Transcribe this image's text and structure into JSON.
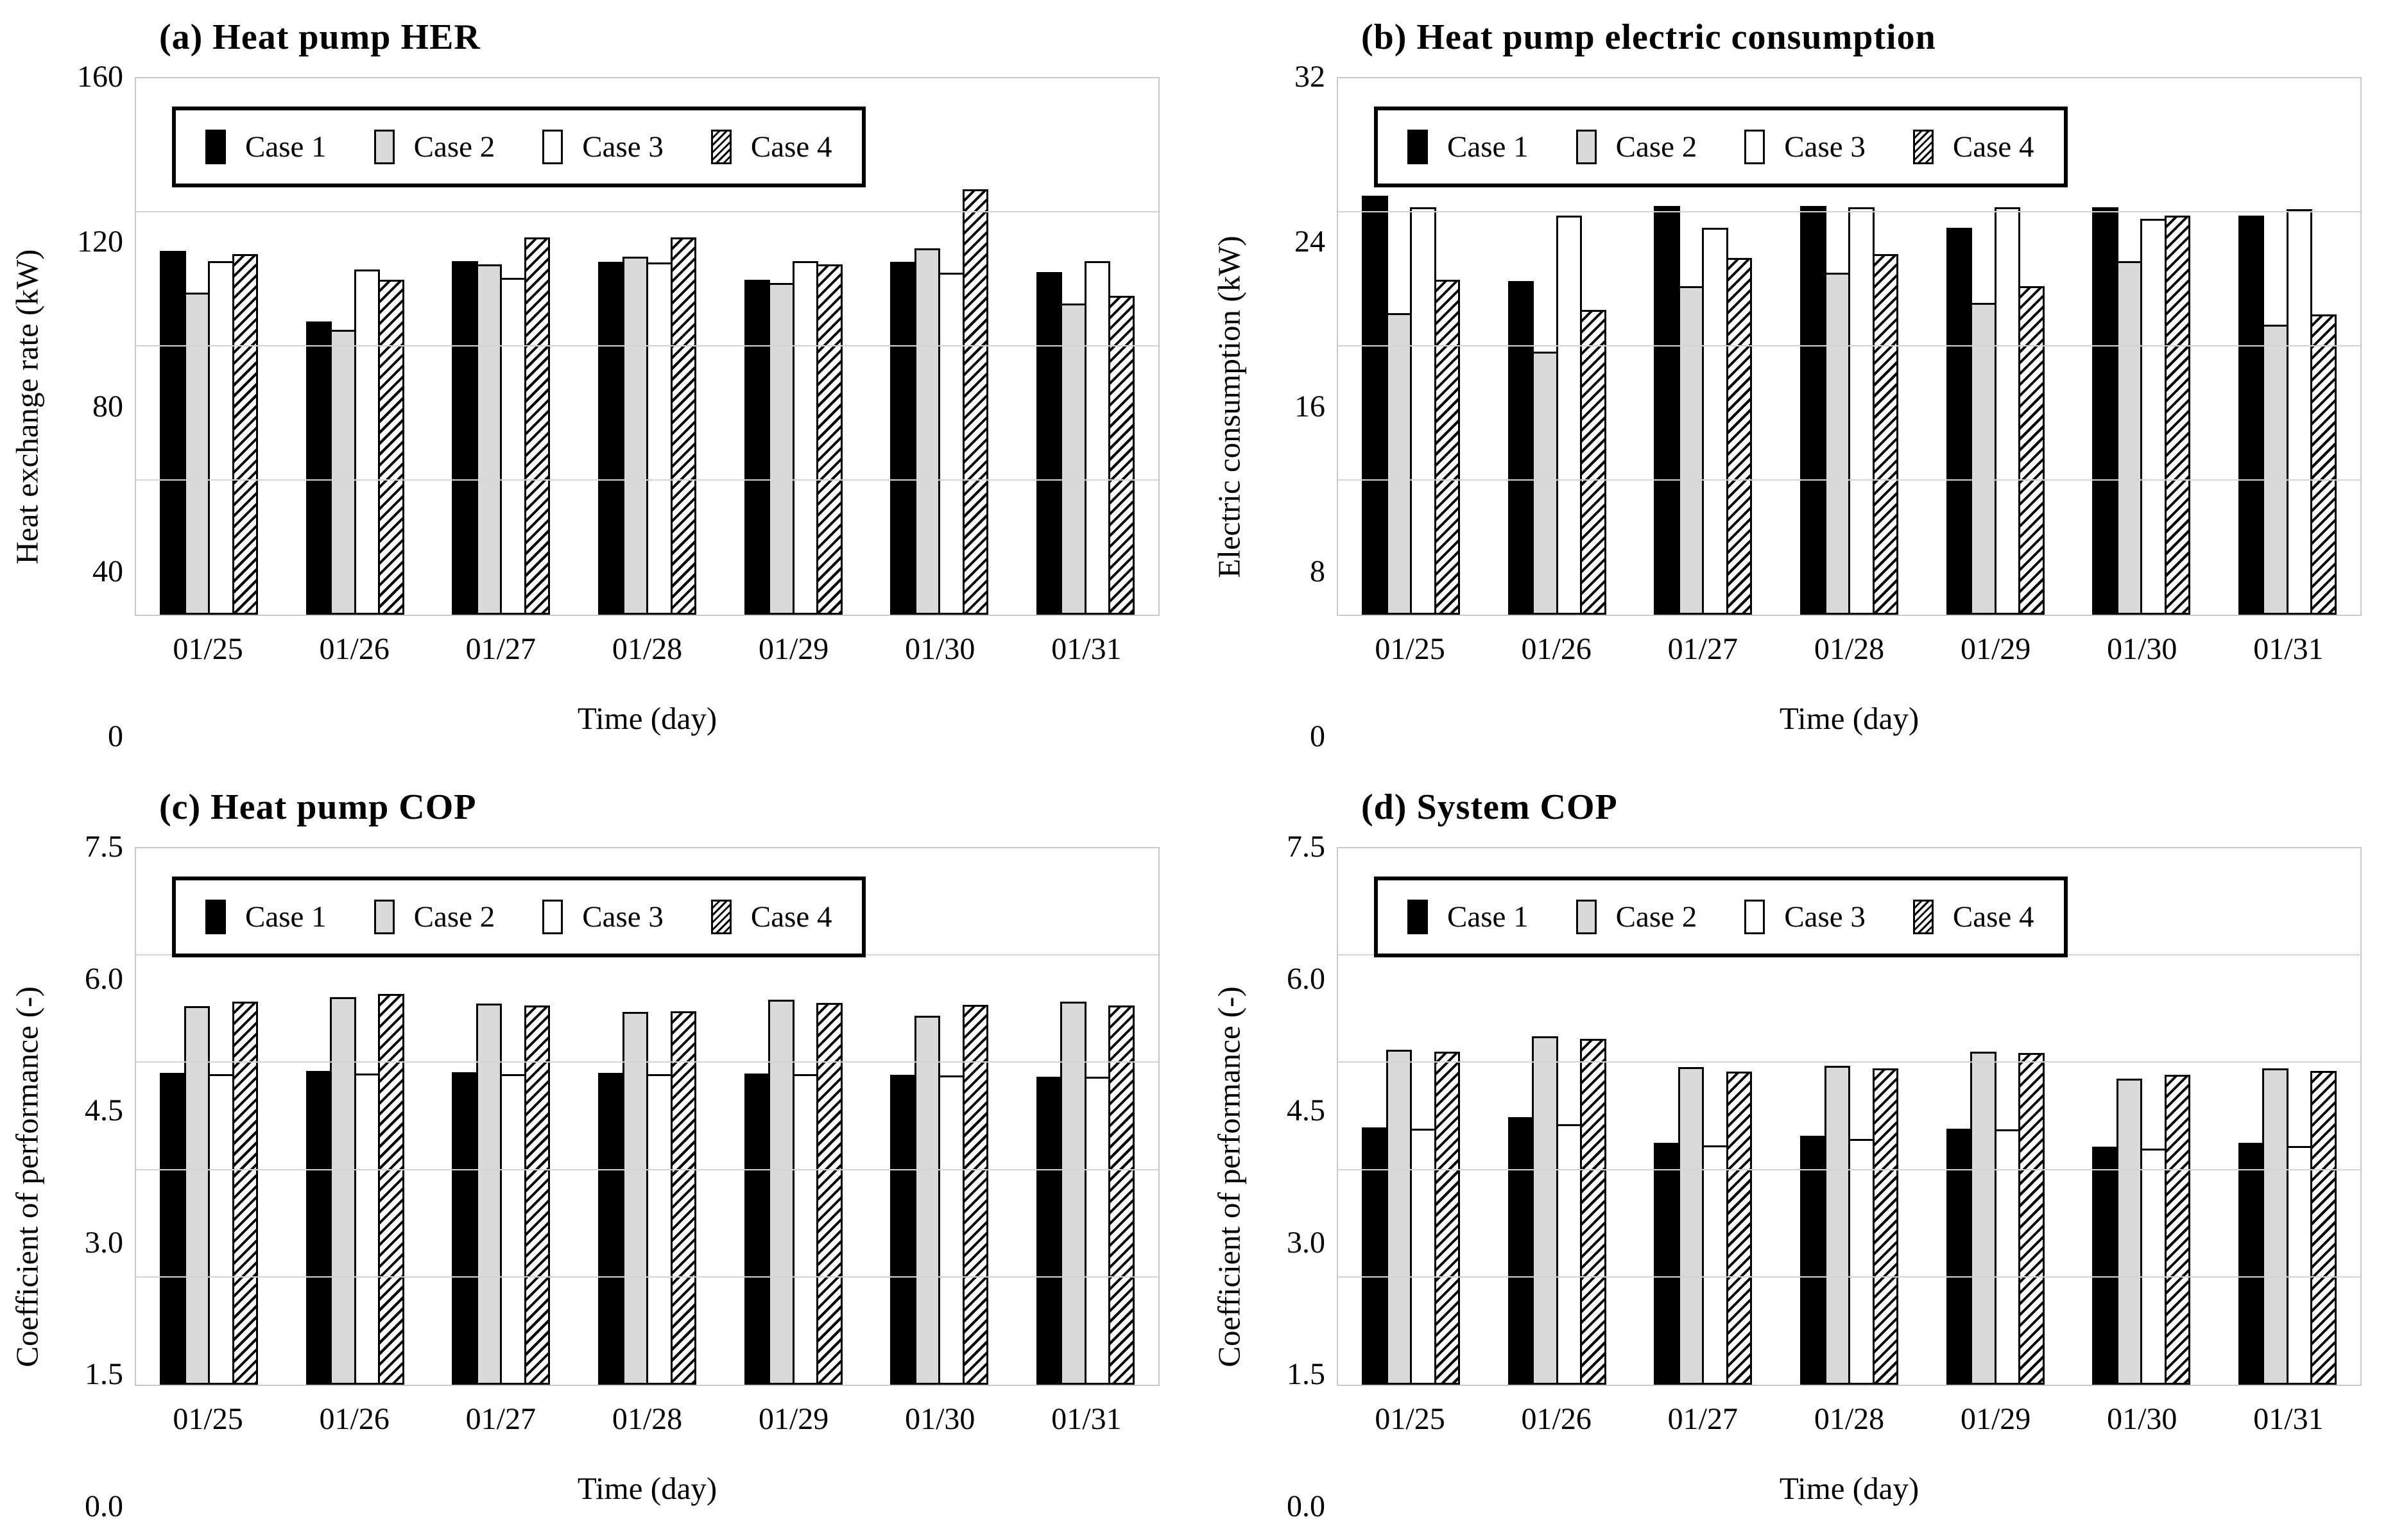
{
  "colors": {
    "case1_fill": "#000000",
    "case2_fill": "#d9d9d9",
    "case3_fill": "#ffffff",
    "case4_hatch_line": "#000000",
    "bar_outline": "#000000",
    "gridline": "#d4d4d4",
    "plot_frame": "#c9c9c9"
  },
  "chart_data": [
    {
      "type": "bar",
      "title": "(a) Heat pump HER",
      "xlabel": "Time (day)",
      "ylabel": "Heat exchange rate (kW)",
      "ylim": [
        0,
        160
      ],
      "yticks": [
        "0",
        "40",
        "80",
        "120",
        "160"
      ],
      "grid": "horizontal",
      "legend_position": "top-left-inside",
      "categories": [
        "01/25",
        "01/26",
        "01/27",
        "01/28",
        "01/29",
        "01/30",
        "01/31"
      ],
      "series": [
        {
          "name": "Case 1",
          "values": [
            108.5,
            87.5,
            105.5,
            105.2,
            100.0,
            105.2,
            102.2
          ]
        },
        {
          "name": "Case 2",
          "values": [
            96.0,
            85.0,
            104.5,
            106.8,
            99.0,
            109.2,
            92.8
          ]
        },
        {
          "name": "Case 3",
          "values": [
            105.5,
            103.0,
            100.5,
            105.0,
            105.5,
            102.0,
            105.4
          ]
        },
        {
          "name": "Case 4",
          "values": [
            107.5,
            100.0,
            112.5,
            112.5,
            104.5,
            126.8,
            95.1
          ]
        }
      ]
    },
    {
      "type": "bar",
      "title": "(b) Heat pump electric consumption",
      "xlabel": "Time (day)",
      "ylabel": "Electric consumption (kW)",
      "ylim": [
        0,
        32
      ],
      "yticks": [
        "0",
        "8",
        "16",
        "24",
        "32"
      ],
      "grid": "horizontal",
      "legend_position": "top-left-inside",
      "categories": [
        "01/25",
        "01/26",
        "01/27",
        "01/28",
        "01/29",
        "01/30",
        "01/31"
      ],
      "series": [
        {
          "name": "Case 1",
          "values": [
            25.0,
            19.9,
            24.4,
            24.4,
            23.1,
            24.3,
            23.8
          ]
        },
        {
          "name": "Case 2",
          "values": [
            18.0,
            15.7,
            19.6,
            20.4,
            18.6,
            21.1,
            17.3
          ]
        },
        {
          "name": "Case 3",
          "values": [
            24.3,
            23.8,
            23.1,
            24.3,
            24.3,
            23.6,
            24.2
          ]
        },
        {
          "name": "Case 4",
          "values": [
            20.0,
            18.2,
            21.3,
            21.5,
            19.6,
            23.8,
            17.9
          ]
        }
      ]
    },
    {
      "type": "bar",
      "title": "(c) Heat pump COP",
      "xlabel": "Time (day)",
      "ylabel": "Coefficient of performance (-)",
      "ylim": [
        0,
        7.5
      ],
      "yticks": [
        "0.0",
        "1.5",
        "3.0",
        "4.5",
        "6.0",
        "7.5"
      ],
      "grid": "horizontal",
      "legend_position": "top-left-inside",
      "categories": [
        "01/25",
        "01/26",
        "01/27",
        "01/28",
        "01/29",
        "01/30",
        "01/31"
      ],
      "series": [
        {
          "name": "Case 1",
          "values": [
            4.36,
            4.39,
            4.37,
            4.36,
            4.35,
            4.33,
            4.31
          ]
        },
        {
          "name": "Case 2",
          "values": [
            5.29,
            5.42,
            5.33,
            5.21,
            5.38,
            5.16,
            5.36
          ]
        },
        {
          "name": "Case 3",
          "values": [
            4.34,
            4.35,
            4.34,
            4.34,
            4.34,
            4.32,
            4.31
          ]
        },
        {
          "name": "Case 4",
          "values": [
            5.36,
            5.46,
            5.3,
            5.22,
            5.34,
            5.31,
            5.3
          ]
        }
      ]
    },
    {
      "type": "bar",
      "title": "(d) System COP",
      "xlabel": "Time (day)",
      "ylabel": "Coefficient of performance (-)",
      "ylim": [
        0,
        7.5
      ],
      "yticks": [
        "0.0",
        "1.5",
        "3.0",
        "4.5",
        "6.0",
        "7.5"
      ],
      "grid": "horizontal",
      "legend_position": "top-left-inside",
      "categories": [
        "01/25",
        "01/26",
        "01/27",
        "01/28",
        "01/29",
        "01/30",
        "01/31"
      ],
      "series": [
        {
          "name": "Case 1",
          "values": [
            3.6,
            3.74,
            3.38,
            3.48,
            3.58,
            3.33,
            3.38
          ]
        },
        {
          "name": "Case 2",
          "values": [
            4.68,
            4.87,
            4.44,
            4.46,
            4.66,
            4.28,
            4.42
          ]
        },
        {
          "name": "Case 3",
          "values": [
            3.58,
            3.64,
            3.35,
            3.44,
            3.57,
            3.3,
            3.34
          ]
        },
        {
          "name": "Case 4",
          "values": [
            4.66,
            4.84,
            4.38,
            4.42,
            4.64,
            4.33,
            4.39
          ]
        }
      ]
    }
  ]
}
